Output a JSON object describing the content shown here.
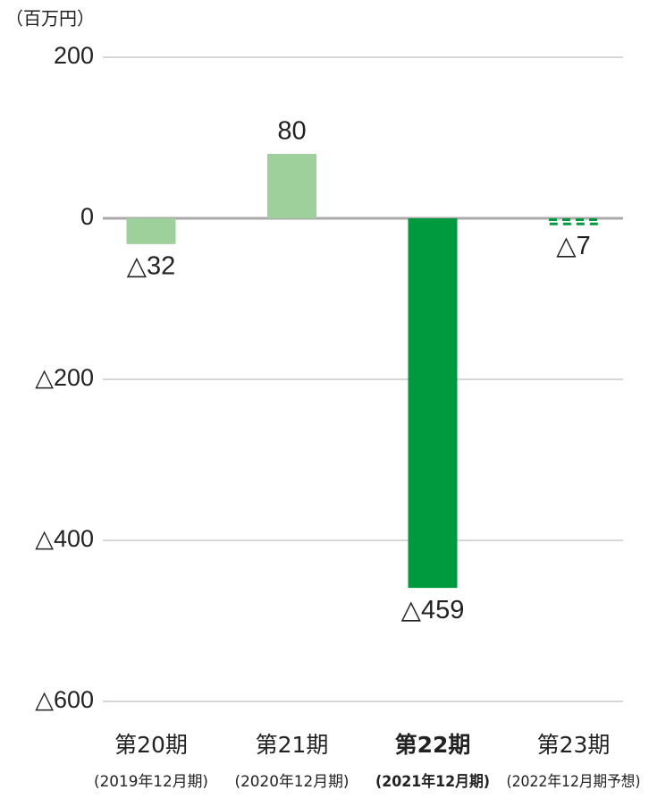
{
  "chart_data": {
    "type": "bar",
    "y_axis_label": "（百万円）",
    "categories": [
      "第20期",
      "第21期",
      "第22期",
      "第23期"
    ],
    "category_sublabels": [
      "(2019年12月期)",
      "(2020年12月期)",
      "(2021年12月期)",
      "(2022年12月期予想)"
    ],
    "values": [
      -32,
      80,
      -459,
      -7
    ],
    "value_labels": [
      "△32",
      "80",
      "△459",
      "△7"
    ],
    "colors": [
      "#9dd09a",
      "#9dd09a",
      "#009a3e",
      "#009a3e"
    ],
    "bar_styles": [
      "solid",
      "solid",
      "solid",
      "dashed"
    ],
    "highlight_index": 2,
    "ylim": [
      -600,
      200
    ],
    "yticks": [
      200,
      0,
      {
        "value": -200,
        "label": "△200"
      },
      {
        "value": -400,
        "label": "△400"
      },
      {
        "value": -600,
        "label": "△600"
      }
    ],
    "grid": true
  }
}
